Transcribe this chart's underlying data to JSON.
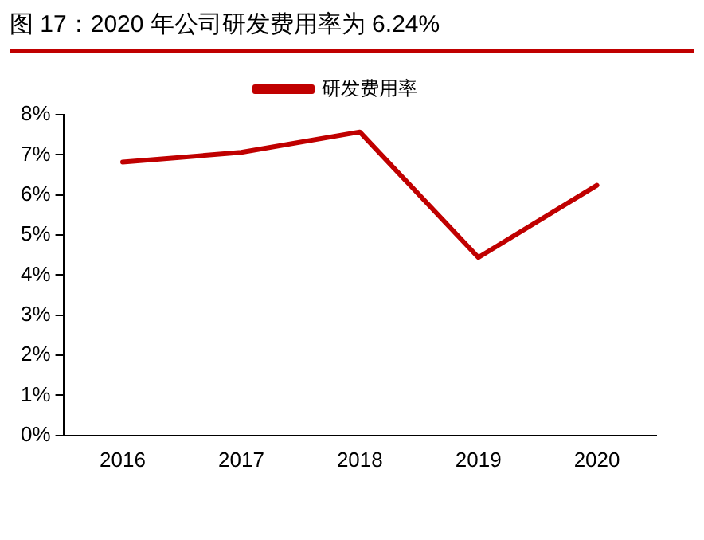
{
  "chart_data": {
    "type": "line",
    "title": "图 17：2020 年公司研发费用率为 6.24%",
    "categories": [
      "2016",
      "2017",
      "2018",
      "2019",
      "2020"
    ],
    "series": [
      {
        "name": "研发费用率",
        "color": "#c00000",
        "values": [
          6.82,
          7.06,
          7.57,
          4.44,
          6.24
        ]
      }
    ],
    "ylim": [
      0,
      8
    ],
    "yticks": [
      {
        "value": 0,
        "label": "0%"
      },
      {
        "value": 1,
        "label": "1%"
      },
      {
        "value": 2,
        "label": "2%"
      },
      {
        "value": 3,
        "label": "3%"
      },
      {
        "value": 4,
        "label": "4%"
      },
      {
        "value": 5,
        "label": "5%"
      },
      {
        "value": 6,
        "label": "6%"
      },
      {
        "value": 7,
        "label": "7%"
      },
      {
        "value": 8,
        "label": "8%"
      }
    ],
    "grid": false,
    "legend": "top",
    "marker": "none",
    "line_style": "solid"
  }
}
